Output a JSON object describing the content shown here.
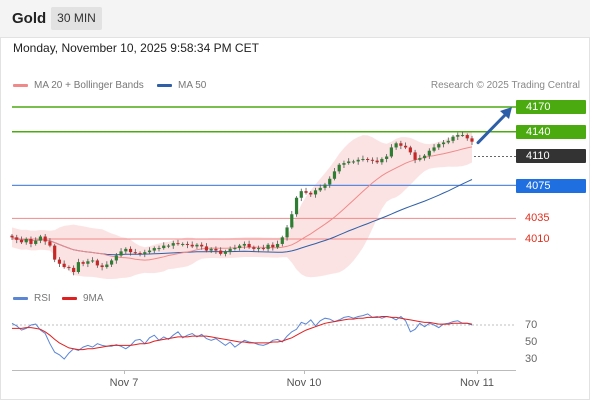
{
  "header": {
    "instrument": "Gold",
    "timeframe": "30 MIN"
  },
  "chart_header": {
    "datetime": "Monday, November 10, 2025 9:58:34 PM CET",
    "copyright": "Research © 2025 Trading Central"
  },
  "legend": {
    "items": [
      {
        "label": "MA 20 + Bollinger Bands",
        "color": "#f08a8a"
      },
      {
        "label": "MA 50",
        "color": "#2f5fa7"
      }
    ]
  },
  "rsi_legend": {
    "items": [
      {
        "label": "RSI",
        "color": "#5b86d6"
      },
      {
        "label": "9MA",
        "color": "#e02020"
      }
    ]
  },
  "levels": [
    {
      "label": "4170",
      "style": "green",
      "color": "#4caa11"
    },
    {
      "label": "4140",
      "style": "green",
      "color": "#4caa11"
    },
    {
      "label": "4110",
      "style": "current",
      "color": "#333333"
    },
    {
      "label": "4075",
      "style": "blue",
      "color": "#1f6fe0"
    },
    {
      "label": "4035",
      "style": "red",
      "color": "#e0301e"
    },
    {
      "label": "4010",
      "style": "red",
      "color": "#e0301e"
    }
  ],
  "rsi_ticks": [
    "70",
    "50",
    "30"
  ],
  "x_axis": {
    "labels": [
      "Nov 7",
      "Nov 10",
      "Nov 11"
    ]
  },
  "chart_data": {
    "type": "candlestick",
    "instrument": "Gold",
    "timeframe": "30 MIN",
    "price_levels": [
      4170,
      4140,
      4110,
      4075,
      4035,
      4010
    ],
    "close_series": [
      4012,
      4009,
      4006,
      4010,
      4004,
      4008,
      4013,
      4007,
      4002,
      3985,
      3980,
      3976,
      3975,
      3970,
      3982,
      3980,
      3983,
      3984,
      3978,
      3976,
      3979,
      3984,
      3990,
      3995,
      3998,
      3994,
      3993,
      3992,
      3994,
      3996,
      3999,
      3999,
      4002,
      4002,
      4005,
      4004,
      4004,
      4003,
      4001,
      4003,
      4001,
      3996,
      3998,
      3996,
      3992,
      3995,
      3998,
      3999,
      4002,
      4004,
      4000,
      3998,
      3999,
      3998,
      4003,
      4000,
      4004,
      4012,
      4024,
      4040,
      4060,
      4068,
      4066,
      4064,
      4069,
      4072,
      4076,
      4083,
      4092,
      4100,
      4102,
      4104,
      4104,
      4106,
      4107,
      4106,
      4105,
      4103,
      4107,
      4110,
      4121,
      4126,
      4123,
      4121,
      4115,
      4106,
      4108,
      4111,
      4117,
      4121,
      4125,
      4127,
      4129,
      4134,
      4136,
      4136,
      4132,
      4128
    ],
    "forecast_target": 4170,
    "rsi": {
      "ticks": [
        70,
        50,
        30
      ],
      "values": [
        72,
        69,
        64,
        66,
        70,
        71,
        64,
        60,
        48,
        38,
        35,
        30,
        37,
        42,
        40,
        44,
        46,
        44,
        48,
        46,
        45,
        45,
        47,
        45,
        42,
        46,
        52,
        53,
        48,
        55,
        58,
        52,
        56,
        53,
        58,
        62,
        55,
        58,
        60,
        56,
        59,
        54,
        52,
        54,
        50,
        46,
        50,
        44,
        48,
        52,
        50,
        49,
        47,
        46,
        48,
        52,
        53,
        50,
        57,
        62,
        65,
        73,
        71,
        76,
        69,
        75,
        78,
        77,
        74,
        76,
        79,
        80,
        78,
        80,
        81,
        83,
        79,
        80,
        78,
        80,
        79,
        76,
        80,
        75,
        62,
        65,
        72,
        68,
        72,
        70,
        67,
        71,
        72,
        74,
        75,
        72,
        72,
        70
      ],
      "ma9": [
        66,
        66,
        66,
        67,
        67,
        66,
        65,
        62,
        58,
        53,
        49,
        46,
        43,
        42,
        41,
        41,
        42,
        42,
        43,
        44,
        45,
        46,
        46,
        46,
        46,
        46,
        47,
        48,
        48,
        49,
        51,
        52,
        53,
        54,
        55,
        56,
        56,
        56,
        57,
        57,
        57,
        57,
        56,
        55,
        54,
        53,
        52,
        51,
        50,
        50,
        49,
        49,
        49,
        49,
        49,
        50,
        50,
        51,
        53,
        55,
        58,
        61,
        64,
        66,
        68,
        70,
        72,
        73,
        74,
        75,
        76,
        77,
        77,
        78,
        78,
        79,
        79,
        79,
        80,
        80,
        79,
        79,
        78,
        77,
        76,
        75,
        74,
        73,
        73,
        72,
        71,
        71,
        71,
        72,
        72,
        72,
        72,
        71
      ]
    },
    "x_axis_labels": [
      "Nov 7",
      "Nov 10",
      "Nov 11"
    ]
  }
}
